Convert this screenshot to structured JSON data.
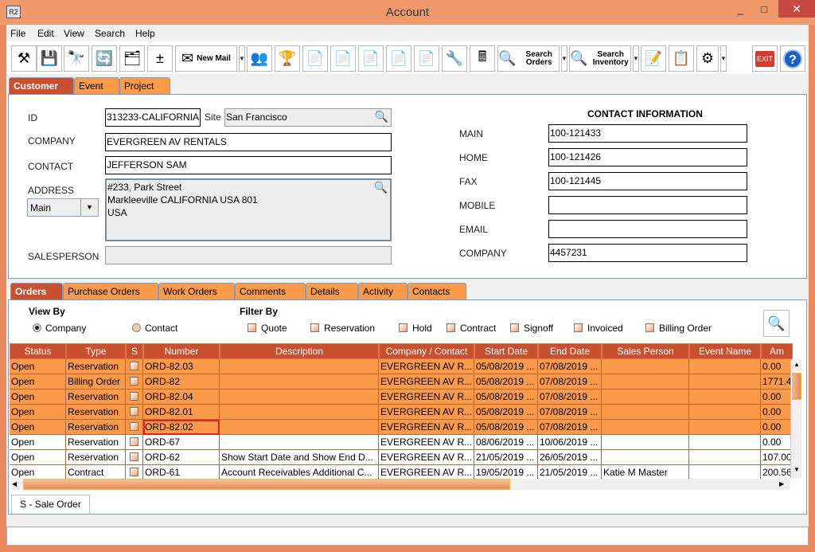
{
  "window": {
    "title": "Account",
    "app_icon": "R2",
    "minimize": "_",
    "maximize": "□",
    "close": "✕"
  },
  "menu": [
    "File",
    "Edit",
    "View",
    "Search",
    "Help"
  ],
  "toolbar": [
    {
      "name": "edit-tool-button",
      "icon": "⚒"
    },
    {
      "name": "save-button",
      "icon": "💾"
    },
    {
      "name": "find-button",
      "icon": "🔭"
    },
    {
      "name": "refresh-button",
      "icon": "🔄"
    },
    {
      "name": "hierarchy-button",
      "icon": "🗂"
    },
    {
      "name": "add-remove-button",
      "icon": "±"
    },
    {
      "name": "new-mail-button",
      "icon": "✉",
      "label": "New Mail",
      "dropdown": true
    },
    {
      "name": "contacts-button",
      "icon": "👥"
    },
    {
      "name": "award-button",
      "icon": "🏆"
    },
    {
      "name": "new-doc-yellow-button",
      "icon": "📄"
    },
    {
      "name": "new-doc-purple-button",
      "icon": "📄"
    },
    {
      "name": "new-doc-red-button",
      "icon": "📄"
    },
    {
      "name": "document-button",
      "icon": "📄"
    },
    {
      "name": "new-doc-green-button",
      "icon": "📄"
    },
    {
      "name": "work-order-button",
      "icon": "🔧"
    },
    {
      "name": "cash-register-button",
      "icon": "🖩"
    },
    {
      "name": "search-orders-button",
      "icon": "🔍",
      "label": "Search Orders",
      "dropdown": true
    },
    {
      "name": "search-inventory-button",
      "icon": "🔍",
      "label": "Search Inventory",
      "dropdown": true
    },
    {
      "name": "edit-form-button",
      "icon": "📝"
    },
    {
      "name": "copy-docs-button",
      "icon": "📋"
    },
    {
      "name": "disabled-tool-button",
      "icon": "⚙",
      "dropdown": true
    }
  ],
  "exit_label": "EXIT",
  "help_label": "?",
  "main_tabs": [
    "Customer",
    "Event",
    "Project"
  ],
  "customer": {
    "id_label": "ID",
    "id": "313233-CALIFORNIA",
    "site_label": "Site",
    "site": "San Francisco",
    "company_label": "COMPANY",
    "company": "EVERGREEN AV RENTALS",
    "contact_label": "CONTACT",
    "contact": "JEFFERSON SAM",
    "address_label": "ADDRESS",
    "address_type": "Main",
    "address_lines": [
      "#233, Park Street",
      "Markleeville CALIFORNIA USA 801",
      "USA"
    ],
    "salesperson_label": "SALESPERSON",
    "salesperson": ""
  },
  "contact_info": {
    "heading": "CONTACT INFORMATION",
    "rows": [
      {
        "label": "MAIN",
        "value": "100-121433"
      },
      {
        "label": "HOME",
        "value": "100-121426"
      },
      {
        "label": "FAX",
        "value": "100-121445"
      },
      {
        "label": "MOBILE",
        "value": ""
      },
      {
        "label": "EMAIL",
        "value": ""
      },
      {
        "label": "COMPANY",
        "value": "4457231"
      }
    ]
  },
  "sub_tabs": [
    "Orders",
    "Purchase Orders",
    "Work Orders",
    "Comments",
    "Details",
    "Activity",
    "Contacts"
  ],
  "view_by": {
    "label": "View By",
    "options": [
      {
        "label": "Company",
        "checked": true
      },
      {
        "label": "Contact",
        "checked": false
      }
    ]
  },
  "filter_by": {
    "label": "Filter By",
    "options": [
      "Quote",
      "Reservation",
      "Hold",
      "Contract",
      "Signoff",
      "Invoiced",
      "Billing Order"
    ]
  },
  "table": {
    "columns": [
      "Status",
      "Type",
      "S",
      "Number",
      "Description",
      "Company / Contact",
      "Start Date",
      "End Date",
      "Sales Person",
      "Event Name",
      "Am"
    ],
    "rows": [
      {
        "selected": true,
        "cells": [
          "Open",
          "Reservation",
          "",
          "ORD-82.03",
          "",
          "EVERGREEN AV R...",
          "05/08/2019 ...",
          "07/08/2019 ...",
          "",
          "",
          "0.00"
        ]
      },
      {
        "selected": true,
        "cells": [
          "Open",
          "Billing Order",
          "",
          "ORD-82",
          "",
          "EVERGREEN AV R...",
          "05/08/2019 ...",
          "07/08/2019 ...",
          "",
          "",
          "1771.4"
        ]
      },
      {
        "selected": true,
        "cells": [
          "Open",
          "Reservation",
          "",
          "ORD-82.04",
          "",
          "EVERGREEN AV R...",
          "05/08/2019 ...",
          "07/08/2019 ...",
          "",
          "",
          "0.00"
        ]
      },
      {
        "selected": true,
        "cells": [
          "Open",
          "Reservation",
          "",
          "ORD-82.01",
          "",
          "EVERGREEN AV R...",
          "05/08/2019 ...",
          "07/08/2019 ...",
          "",
          "",
          "0.00"
        ]
      },
      {
        "selected": true,
        "cells": [
          "Open",
          "Reservation",
          "",
          "ORD-82.02",
          "",
          "EVERGREEN AV R...",
          "05/08/2019 ...",
          "07/08/2019 ...",
          "",
          "",
          "0.00"
        ]
      },
      {
        "selected": false,
        "cells": [
          "Open",
          "Reservation",
          "",
          "ORD-67",
          "",
          "EVERGREEN AV R...",
          "08/06/2019 ...",
          "10/06/2019 ...",
          "",
          "",
          "0.00"
        ]
      },
      {
        "selected": false,
        "cells": [
          "Open",
          "Reservation",
          "",
          "ORD-62",
          "Show Start Date and Show End D...",
          "EVERGREEN AV R...",
          "21/05/2019 ...",
          "26/05/2019 ...",
          "",
          "",
          "107.00"
        ]
      },
      {
        "selected": false,
        "cells": [
          "Open",
          "Contract",
          "",
          "ORD-61",
          "Account Receivables Additional C...",
          "EVERGREEN AV R...",
          "19/05/2019 ...",
          "21/05/2019 ...",
          "Katie M Master",
          "",
          "200.56"
        ]
      }
    ]
  },
  "legend_tab": "S - Sale Order",
  "colors": {
    "accent": "#c8502f",
    "selected_row": "#fb9a4a",
    "frame": "#e9895c"
  }
}
